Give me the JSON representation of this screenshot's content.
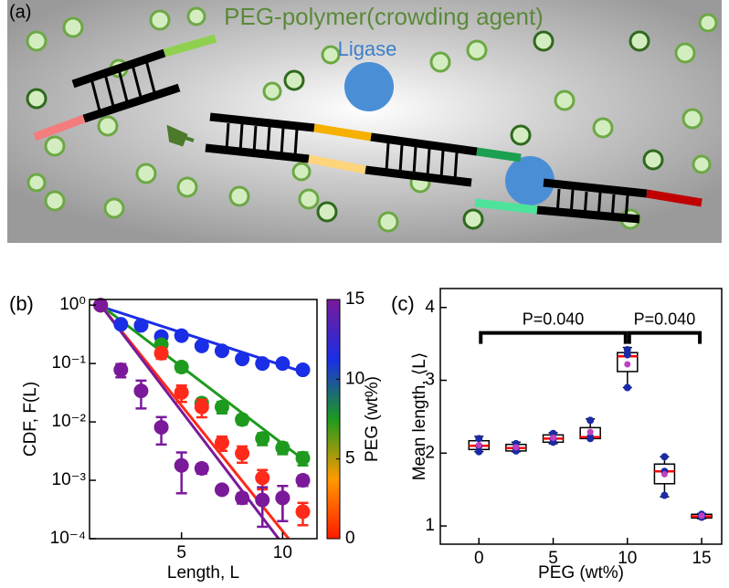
{
  "panel_a": {
    "panel": "(a)",
    "crowder_label": "PEG-polymer(crowding agent)",
    "enzyme_label": "Ligase"
  },
  "chart_data": [
    {
      "type": "scatter",
      "panel": "(b)",
      "xlabel": "Length, L",
      "ylabel": "CDF, F(L)",
      "log_y": true,
      "xlim": [
        0.45,
        11.7
      ],
      "xticks": [
        5,
        10
      ],
      "ylim": [
        0.0001,
        1.25
      ],
      "yticks": [
        {
          "value": 1,
          "label": "10⁰"
        },
        {
          "value": 0.1,
          "label": "10⁻¹"
        },
        {
          "value": 0.01,
          "label": "10⁻²"
        },
        {
          "value": 0.001,
          "label": "10⁻³"
        },
        {
          "value": 0.0001,
          "label": "10⁻⁴"
        }
      ],
      "x": [
        1,
        2,
        3,
        4,
        5,
        6,
        7,
        8,
        9,
        10,
        11
      ],
      "series": [
        {
          "color": "#1a2ee6",
          "values": [
            1,
            0.47,
            0.45,
            0.29,
            0.3,
            0.2,
            0.165,
            0.12,
            0.1,
            0.1,
            0.078
          ],
          "errors": [
            0,
            0.05,
            0.05,
            0.04,
            0.04,
            0.03,
            0.02,
            0.015,
            0.012,
            0.012,
            0.01
          ],
          "fit_x": [
            1,
            11
          ],
          "fit_values": [
            0.95,
            0.072
          ]
        },
        {
          "color": "#1e9a1e",
          "values": [
            1,
            null,
            null,
            0.21,
            0.087,
            0.021,
            0.018,
            0.011,
            0.0052,
            0.0036,
            0.0024
          ],
          "errors": [
            0,
            null,
            null,
            0.03,
            0.015,
            0.004,
            0.004,
            0.002,
            0.0012,
            0.0008,
            0.0006
          ],
          "fit_x": [
            1,
            11
          ],
          "fit_values": [
            1,
            0.0023
          ]
        },
        {
          "color": "#ff2a1a",
          "values": [
            1,
            null,
            null,
            0.15,
            0.032,
            0.018,
            0.0044,
            0.0029,
            0.0011,
            0.0005,
            0.00029
          ],
          "errors": [
            0,
            null,
            null,
            0.03,
            0.01,
            0.006,
            0.0012,
            0.0009,
            0.0004,
            0.0003,
            0.00012
          ],
          "fit_x": [
            1,
            10.3
          ],
          "fit_values": [
            1,
            0.0001
          ]
        },
        {
          "color": "#7a1a9a",
          "values": [
            1,
            0.078,
            0.034,
            0.0081,
            0.0018,
            0.0016,
            0.00069,
            0.0005,
            0.00046,
            0.0005,
            0.001
          ],
          "errors": [
            0,
            0.02,
            0.017,
            0.004,
            0.0012,
            0.0003,
            0.0001,
            0.0001,
            0.0003,
            0.0003,
            0.0002
          ],
          "fit_x": [
            1,
            9.8
          ],
          "fit_values": [
            1,
            0.0001
          ]
        }
      ],
      "colorbar": {
        "label": "PEG (wt%)",
        "lim": [
          0,
          15
        ],
        "ticks": [
          0,
          5,
          10,
          15
        ],
        "colors": [
          "#ff1a00",
          "#ff9a00",
          "#1e9a1e",
          "#1a2ee6",
          "#7a1a9a"
        ]
      }
    },
    {
      "type": "box",
      "panel": "(c)",
      "xlabel": "PEG (wt%)",
      "ylabel": "Mean length, ⟨L⟩",
      "xlim": [
        -2.6,
        16.35
      ],
      "xticks": [
        0,
        5,
        10,
        15
      ],
      "ylim": [
        0.75,
        4.26
      ],
      "yticks": [
        1,
        2,
        3,
        4
      ],
      "x": [
        0,
        2.5,
        5,
        7.5,
        10,
        12.5,
        15
      ],
      "min": [
        2.02,
        2.02,
        2.13,
        2.2,
        2.9,
        1.4,
        1.1
      ],
      "q1": [
        2.05,
        2.03,
        2.15,
        2.2,
        3.12,
        1.58,
        1.11
      ],
      "median": [
        2.1,
        2.07,
        2.2,
        2.22,
        3.33,
        1.75,
        1.13
      ],
      "q3": [
        2.17,
        2.12,
        2.25,
        2.35,
        3.38,
        1.85,
        1.16
      ],
      "max": [
        2.23,
        2.15,
        2.28,
        2.47,
        3.45,
        1.95,
        1.17
      ],
      "means": [
        2.11,
        2.08,
        2.21,
        2.29,
        3.22,
        1.71,
        1.14
      ],
      "points": [
        [
          2.02,
          2.1,
          2.2
        ],
        [
          2.03,
          2.07,
          2.13
        ],
        [
          2.15,
          2.2,
          2.27
        ],
        [
          2.2,
          2.22,
          2.45
        ],
        [
          2.9,
          3.35,
          3.42
        ],
        [
          1.42,
          1.75,
          1.95
        ],
        [
          1.12,
          1.14,
          1.16
        ]
      ],
      "brackets": [
        {
          "x": [
            0,
            10
          ],
          "y": 3.65,
          "label": "P=0.040"
        },
        {
          "x": [
            10,
            15
          ],
          "y": 3.65,
          "label": "P=0.040"
        }
      ]
    }
  ]
}
